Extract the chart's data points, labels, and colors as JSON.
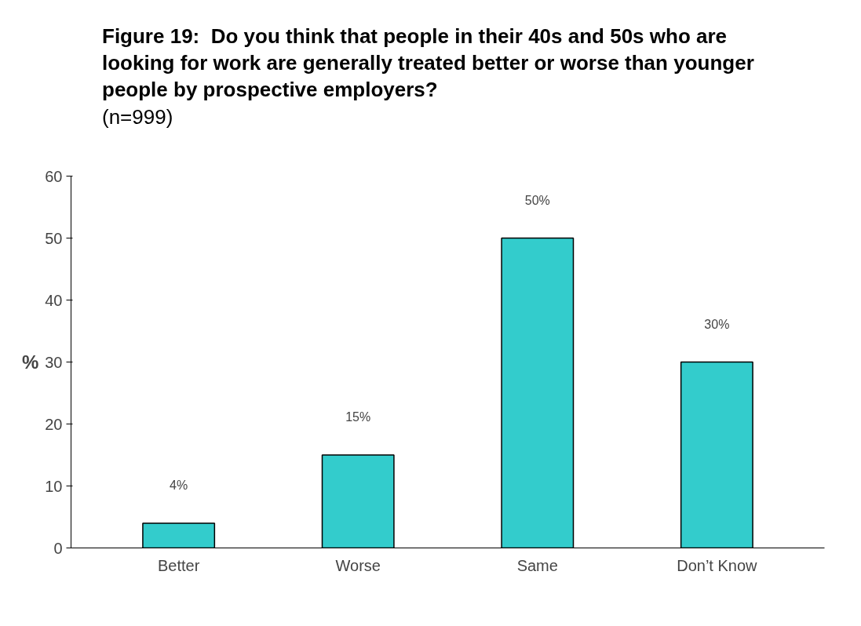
{
  "chart_data": {
    "type": "bar",
    "title": "Figure 19:  Do you think that people in their 40s and 50s who are looking for work are generally treated better or worse than younger people by prospective employers?",
    "subtitle": "(n=999)",
    "ylabel": "%",
    "categories": [
      "Better",
      "Worse",
      "Same",
      "Don’t Know"
    ],
    "values": [
      4,
      15,
      50,
      30
    ],
    "value_labels": [
      "4%",
      "15%",
      "50%",
      "30%"
    ],
    "color": "#33cccc",
    "ylim": [
      0,
      60
    ],
    "yticks": [
      0,
      10,
      20,
      30,
      40,
      50,
      60
    ],
    "grid": false
  }
}
